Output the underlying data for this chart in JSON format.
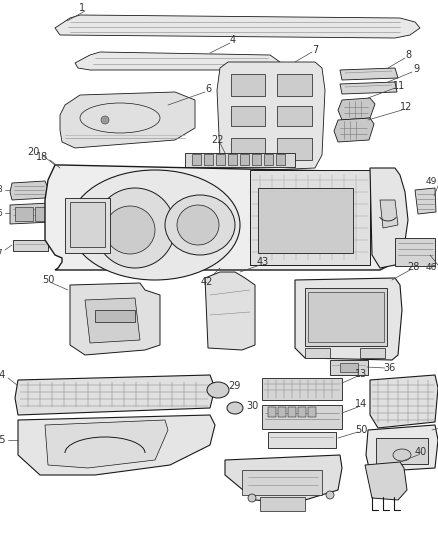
{
  "bg_color": "#ffffff",
  "line_color": "#1a1a1a",
  "label_color": "#333333",
  "fig_width": 4.38,
  "fig_height": 5.33,
  "dpi": 100
}
